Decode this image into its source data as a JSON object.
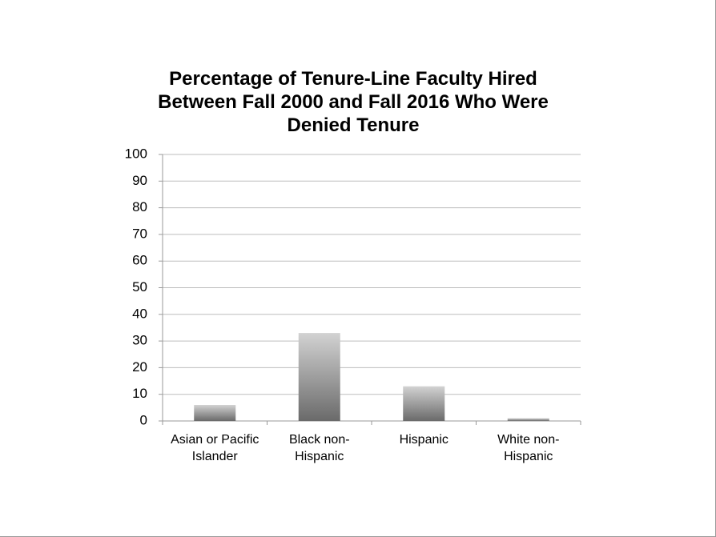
{
  "chart_data": {
    "type": "bar",
    "title": "Percentage of Tenure-Line Faculty Hired Between Fall 2000 and Fall 2016 Who Were Denied Tenure",
    "categories": [
      "Asian or Pacific Islander",
      "Black non-Hispanic",
      "Hispanic",
      "White non-Hispanic"
    ],
    "values": [
      6,
      33,
      13,
      1
    ],
    "ylim": [
      0,
      100
    ],
    "yticks": [
      0,
      10,
      20,
      30,
      40,
      50,
      60,
      70,
      80,
      90,
      100
    ],
    "grid": true
  }
}
